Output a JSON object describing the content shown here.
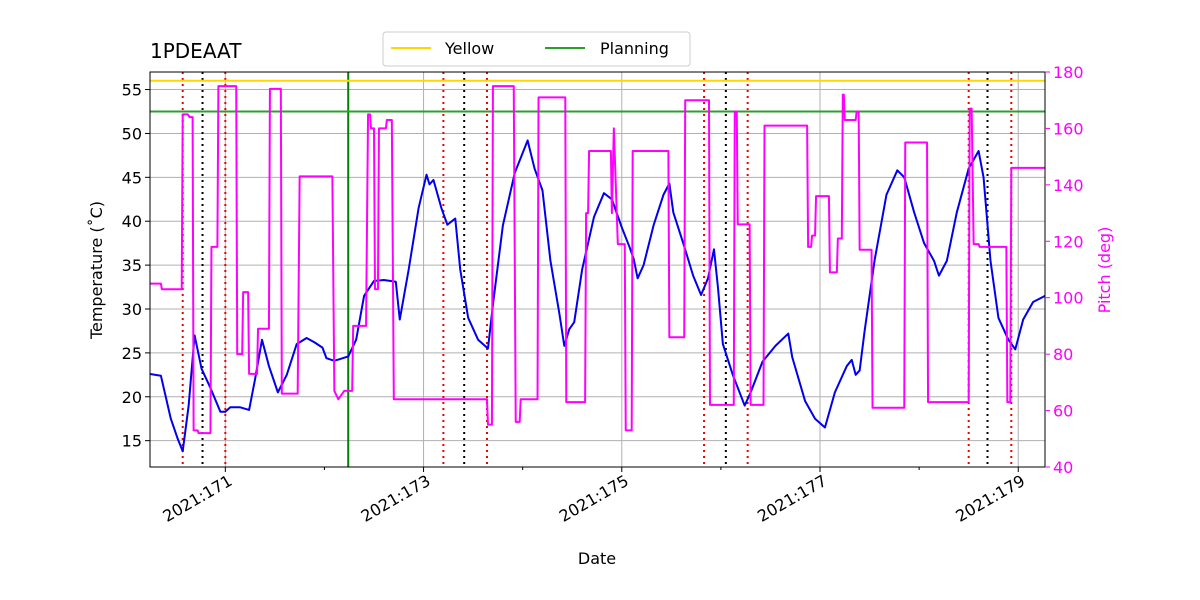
{
  "chart_data": {
    "type": "line",
    "title": "1PDEAAT",
    "xlabel": "Date",
    "ylabel": "Temperature ($^\\circ$C)",
    "ylabel_display": "Temperature (˚C)",
    "y2label": "Pitch (deg)",
    "xlim": [
      170.24,
      179.27
    ],
    "ylim": [
      12,
      57
    ],
    "y2lim": [
      40,
      180
    ],
    "x_tick_values": [
      171,
      173,
      175,
      177,
      179
    ],
    "x_tick_labels": [
      "2021:171",
      "2021:173",
      "2021:175",
      "2021:177",
      "2021:179"
    ],
    "x_minor_tick_values": [
      172,
      174,
      176,
      178
    ],
    "y_ticks": [
      15,
      20,
      25,
      30,
      35,
      40,
      45,
      50,
      55
    ],
    "y2_ticks": [
      40,
      60,
      80,
      100,
      120,
      140,
      160,
      180
    ],
    "grid": true,
    "legend": {
      "placement": "top-center",
      "entries": [
        {
          "name": "Yellow",
          "color": "#ffd700"
        },
        {
          "name": "Planning",
          "color": "#2ca02c"
        }
      ]
    },
    "limit_lines": [
      {
        "name": "Yellow",
        "y": 56.0,
        "color": "#ffd700"
      },
      {
        "name": "Planning",
        "y": 52.5,
        "color": "#2ca02c"
      }
    ],
    "now_line": {
      "x": 172.24,
      "color": "#008000"
    },
    "red_dotted_lines": [
      170.57,
      171.0,
      173.2,
      173.64,
      175.83,
      176.27,
      178.5,
      178.93
    ],
    "black_dotted_lines": [
      170.77,
      173.41,
      176.05,
      178.69
    ],
    "series": [
      {
        "axis": "left",
        "color": "#0000ee",
        "points": [
          [
            170.24,
            22.6
          ],
          [
            170.35,
            22.4
          ],
          [
            170.45,
            17.5
          ],
          [
            170.52,
            15.2
          ],
          [
            170.57,
            13.8
          ],
          [
            170.63,
            19
          ],
          [
            170.69,
            27
          ],
          [
            170.76,
            23.2
          ],
          [
            170.85,
            21
          ],
          [
            170.95,
            18.3
          ],
          [
            171.0,
            18.3
          ],
          [
            171.05,
            18.8
          ],
          [
            171.15,
            18.8
          ],
          [
            171.24,
            18.5
          ],
          [
            171.3,
            22
          ],
          [
            171.37,
            26.5
          ],
          [
            171.44,
            23.5
          ],
          [
            171.53,
            20.5
          ],
          [
            171.62,
            22.5
          ],
          [
            171.72,
            26
          ],
          [
            171.82,
            26.7
          ],
          [
            171.9,
            26.2
          ],
          [
            171.98,
            25.6
          ],
          [
            172.02,
            24.4
          ],
          [
            172.1,
            24.1
          ],
          [
            172.24,
            24.6
          ],
          [
            172.32,
            26.5
          ],
          [
            172.4,
            31.5
          ],
          [
            172.5,
            33.2
          ],
          [
            172.6,
            33.3
          ],
          [
            172.72,
            33.1
          ],
          [
            172.76,
            28.8
          ],
          [
            172.85,
            34.5
          ],
          [
            172.95,
            41.5
          ],
          [
            173.03,
            45.3
          ],
          [
            173.06,
            44.2
          ],
          [
            173.1,
            44.7
          ],
          [
            173.18,
            41.5
          ],
          [
            173.24,
            39.6
          ],
          [
            173.32,
            40.3
          ],
          [
            173.37,
            34.5
          ],
          [
            173.45,
            29
          ],
          [
            173.55,
            26.5
          ],
          [
            173.65,
            25.5
          ],
          [
            173.7,
            30.5
          ],
          [
            173.8,
            39.5
          ],
          [
            173.92,
            45.5
          ],
          [
            174.05,
            49.2
          ],
          [
            174.12,
            46
          ],
          [
            174.2,
            43.5
          ],
          [
            174.28,
            35.5
          ],
          [
            174.37,
            29.5
          ],
          [
            174.42,
            25.8
          ],
          [
            174.47,
            27.7
          ],
          [
            174.52,
            28.5
          ],
          [
            174.6,
            34.5
          ],
          [
            174.72,
            40.5
          ],
          [
            174.82,
            43.2
          ],
          [
            174.9,
            42.5
          ],
          [
            175.0,
            39.3
          ],
          [
            175.08,
            37
          ],
          [
            175.12,
            35.7
          ],
          [
            175.16,
            33.5
          ],
          [
            175.22,
            35
          ],
          [
            175.32,
            39.5
          ],
          [
            175.42,
            43
          ],
          [
            175.48,
            44.3
          ],
          [
            175.52,
            41
          ],
          [
            175.62,
            37.5
          ],
          [
            175.72,
            33.8
          ],
          [
            175.8,
            31.6
          ],
          [
            175.87,
            33.5
          ],
          [
            175.93,
            36.8
          ],
          [
            175.97,
            32.5
          ],
          [
            176.02,
            26
          ],
          [
            176.12,
            22.5
          ],
          [
            176.24,
            19
          ],
          [
            176.3,
            20.5
          ],
          [
            176.42,
            24
          ],
          [
            176.55,
            25.8
          ],
          [
            176.68,
            27.2
          ],
          [
            176.72,
            24.5
          ],
          [
            176.85,
            19.5
          ],
          [
            176.95,
            17.5
          ],
          [
            177.05,
            16.5
          ],
          [
            177.15,
            20.5
          ],
          [
            177.27,
            23.5
          ],
          [
            177.32,
            24.2
          ],
          [
            177.36,
            22.5
          ],
          [
            177.4,
            23
          ],
          [
            177.45,
            27.5
          ],
          [
            177.55,
            35.5
          ],
          [
            177.67,
            43
          ],
          [
            177.78,
            45.8
          ],
          [
            177.85,
            45
          ],
          [
            177.95,
            41
          ],
          [
            178.05,
            37.5
          ],
          [
            178.15,
            35.5
          ],
          [
            178.2,
            33.8
          ],
          [
            178.28,
            35.5
          ],
          [
            178.38,
            41
          ],
          [
            178.5,
            46
          ],
          [
            178.6,
            48
          ],
          [
            178.65,
            45
          ],
          [
            178.72,
            35.5
          ],
          [
            178.8,
            29
          ],
          [
            178.9,
            26.5
          ],
          [
            178.97,
            25.4
          ],
          [
            179.05,
            28.8
          ],
          [
            179.15,
            30.8
          ],
          [
            179.27,
            31.5
          ]
        ]
      },
      {
        "axis": "right",
        "color": "#ff00ff",
        "points": [
          [
            170.24,
            105
          ],
          [
            170.35,
            105
          ],
          [
            170.36,
            103
          ],
          [
            170.56,
            103
          ],
          [
            170.57,
            165
          ],
          [
            170.62,
            165
          ],
          [
            170.64,
            164
          ],
          [
            170.67,
            164
          ],
          [
            170.68,
            53
          ],
          [
            170.72,
            53
          ],
          [
            170.73,
            52
          ],
          [
            170.85,
            52
          ],
          [
            170.86,
            118
          ],
          [
            170.92,
            118
          ],
          [
            170.93,
            175
          ],
          [
            171.11,
            175
          ],
          [
            171.12,
            80
          ],
          [
            171.17,
            80
          ],
          [
            171.18,
            102
          ],
          [
            171.23,
            102
          ],
          [
            171.24,
            73
          ],
          [
            171.32,
            73
          ],
          [
            171.33,
            89
          ],
          [
            171.44,
            89
          ],
          [
            171.45,
            174
          ],
          [
            171.56,
            174
          ],
          [
            171.57,
            66
          ],
          [
            171.73,
            66
          ],
          [
            171.75,
            143
          ],
          [
            172.08,
            143
          ],
          [
            172.1,
            67
          ],
          [
            172.14,
            64
          ],
          [
            172.2,
            67
          ],
          [
            172.28,
            67
          ],
          [
            172.29,
            90
          ],
          [
            172.42,
            90
          ],
          [
            172.44,
            165
          ],
          [
            172.46,
            165
          ],
          [
            172.47,
            160
          ],
          [
            172.5,
            160
          ],
          [
            172.51,
            103
          ],
          [
            172.54,
            103
          ],
          [
            172.55,
            160
          ],
          [
            172.62,
            160
          ],
          [
            172.63,
            163
          ],
          [
            172.68,
            163
          ],
          [
            172.7,
            64
          ],
          [
            173.64,
            64
          ],
          [
            173.65,
            55
          ],
          [
            173.69,
            55
          ],
          [
            173.7,
            175
          ],
          [
            173.91,
            175
          ],
          [
            173.93,
            56
          ],
          [
            173.97,
            56
          ],
          [
            173.98,
            64
          ],
          [
            174.15,
            64
          ],
          [
            174.16,
            171
          ],
          [
            174.43,
            171
          ],
          [
            174.44,
            63
          ],
          [
            174.63,
            63
          ],
          [
            174.64,
            130
          ],
          [
            174.66,
            130
          ],
          [
            174.67,
            152
          ],
          [
            174.89,
            152
          ],
          [
            174.9,
            130
          ],
          [
            174.92,
            160
          ],
          [
            174.96,
            119
          ],
          [
            175.03,
            119
          ],
          [
            175.04,
            53
          ],
          [
            175.1,
            53
          ],
          [
            175.11,
            152
          ],
          [
            175.47,
            152
          ],
          [
            175.48,
            86
          ],
          [
            175.63,
            86
          ],
          [
            175.64,
            170
          ],
          [
            175.88,
            170
          ],
          [
            175.89,
            62
          ],
          [
            176.13,
            62
          ],
          [
            176.14,
            166
          ],
          [
            176.16,
            166
          ],
          [
            176.17,
            126
          ],
          [
            176.29,
            126
          ],
          [
            176.3,
            62
          ],
          [
            176.43,
            62
          ],
          [
            176.44,
            161
          ],
          [
            176.87,
            161
          ],
          [
            176.88,
            118
          ],
          [
            176.91,
            118
          ],
          [
            176.92,
            122
          ],
          [
            176.95,
            122
          ],
          [
            176.96,
            136
          ],
          [
            177.09,
            136
          ],
          [
            177.1,
            109
          ],
          [
            177.17,
            109
          ],
          [
            177.18,
            121
          ],
          [
            177.22,
            121
          ],
          [
            177.23,
            172
          ],
          [
            177.24,
            172
          ],
          [
            177.25,
            163
          ],
          [
            177.36,
            163
          ],
          [
            177.37,
            166
          ],
          [
            177.39,
            166
          ],
          [
            177.4,
            117
          ],
          [
            177.52,
            117
          ],
          [
            177.53,
            61
          ],
          [
            177.85,
            61
          ],
          [
            177.86,
            155
          ],
          [
            178.08,
            155
          ],
          [
            178.09,
            63
          ],
          [
            178.5,
            63
          ],
          [
            178.51,
            167
          ],
          [
            178.53,
            167
          ],
          [
            178.55,
            119
          ],
          [
            178.6,
            119
          ],
          [
            178.61,
            118
          ],
          [
            178.88,
            118
          ],
          [
            178.89,
            63
          ],
          [
            178.92,
            63
          ],
          [
            178.93,
            146
          ],
          [
            179.27,
            146
          ]
        ]
      }
    ]
  }
}
